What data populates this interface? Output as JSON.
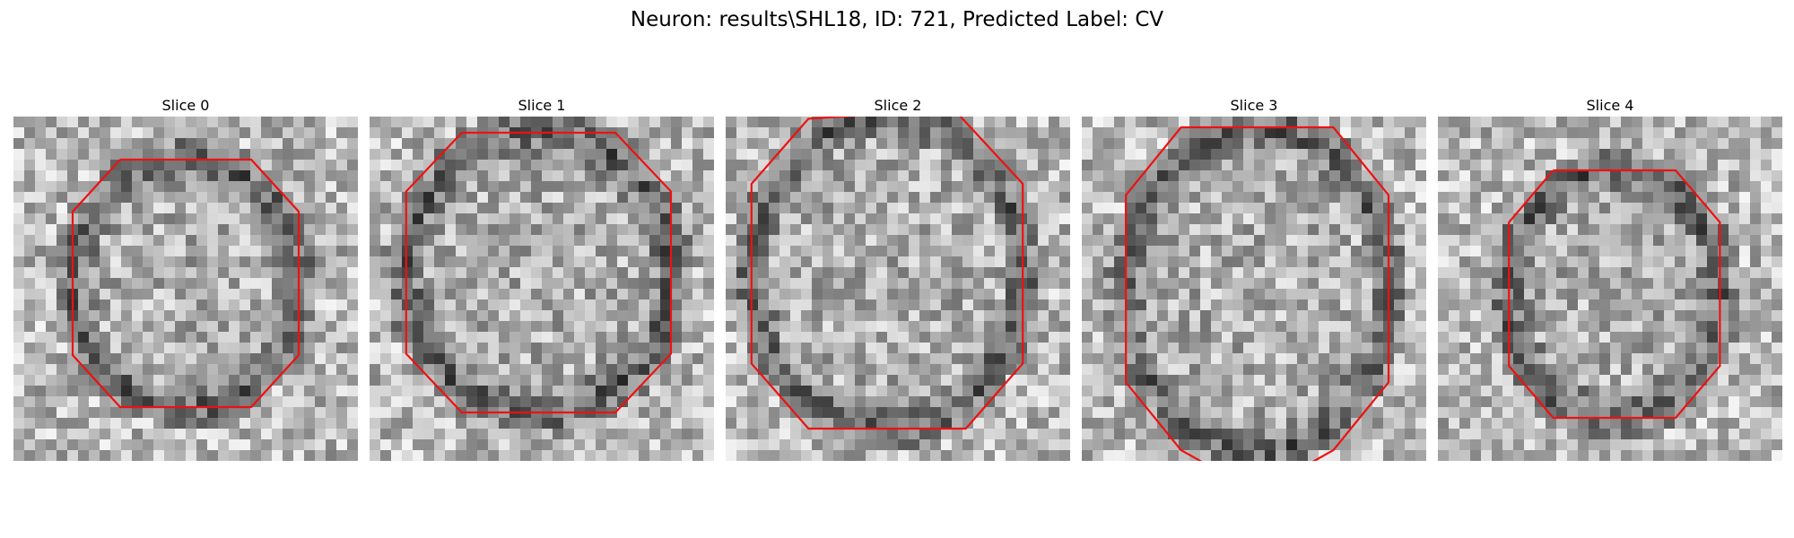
{
  "figure": {
    "title": "Neuron: results\\SHL18, ID: 721, Predicted Label: CV"
  },
  "panels": [
    {
      "title": "Slice 0"
    },
    {
      "title": "Slice 1"
    },
    {
      "title": "Slice 2"
    },
    {
      "title": "Slice 3"
    },
    {
      "title": "Slice 4"
    }
  ],
  "colors": {
    "contour": "#ee1111",
    "background": "#ffffff"
  }
}
